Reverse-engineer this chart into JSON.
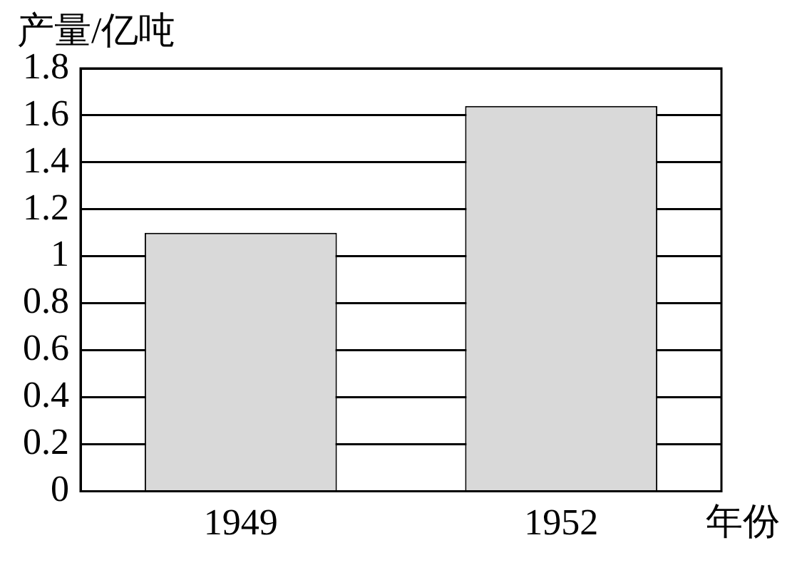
{
  "chart_data": {
    "type": "bar",
    "ylabel": "产量/亿吨",
    "xlabel": "年份",
    "categories": [
      "1949",
      "1952"
    ],
    "values": [
      1.1,
      1.64
    ],
    "color": "#d9d9d9",
    "ylim": [
      0,
      1.8
    ],
    "yticks": [
      0,
      {
        "value": 0.2,
        "label": "0.2"
      },
      {
        "value": 0.4,
        "label": "0.4"
      },
      {
        "value": 0.6,
        "label": "0.6"
      },
      {
        "value": 0.8,
        "label": "0.8"
      },
      1,
      {
        "value": 1.2,
        "label": "1.2"
      },
      {
        "value": 1.4,
        "label": "1.4"
      },
      {
        "value": 1.6,
        "label": "1.6"
      },
      {
        "value": 1.8,
        "label": "1.8"
      }
    ],
    "grid": "y",
    "legend": false
  }
}
